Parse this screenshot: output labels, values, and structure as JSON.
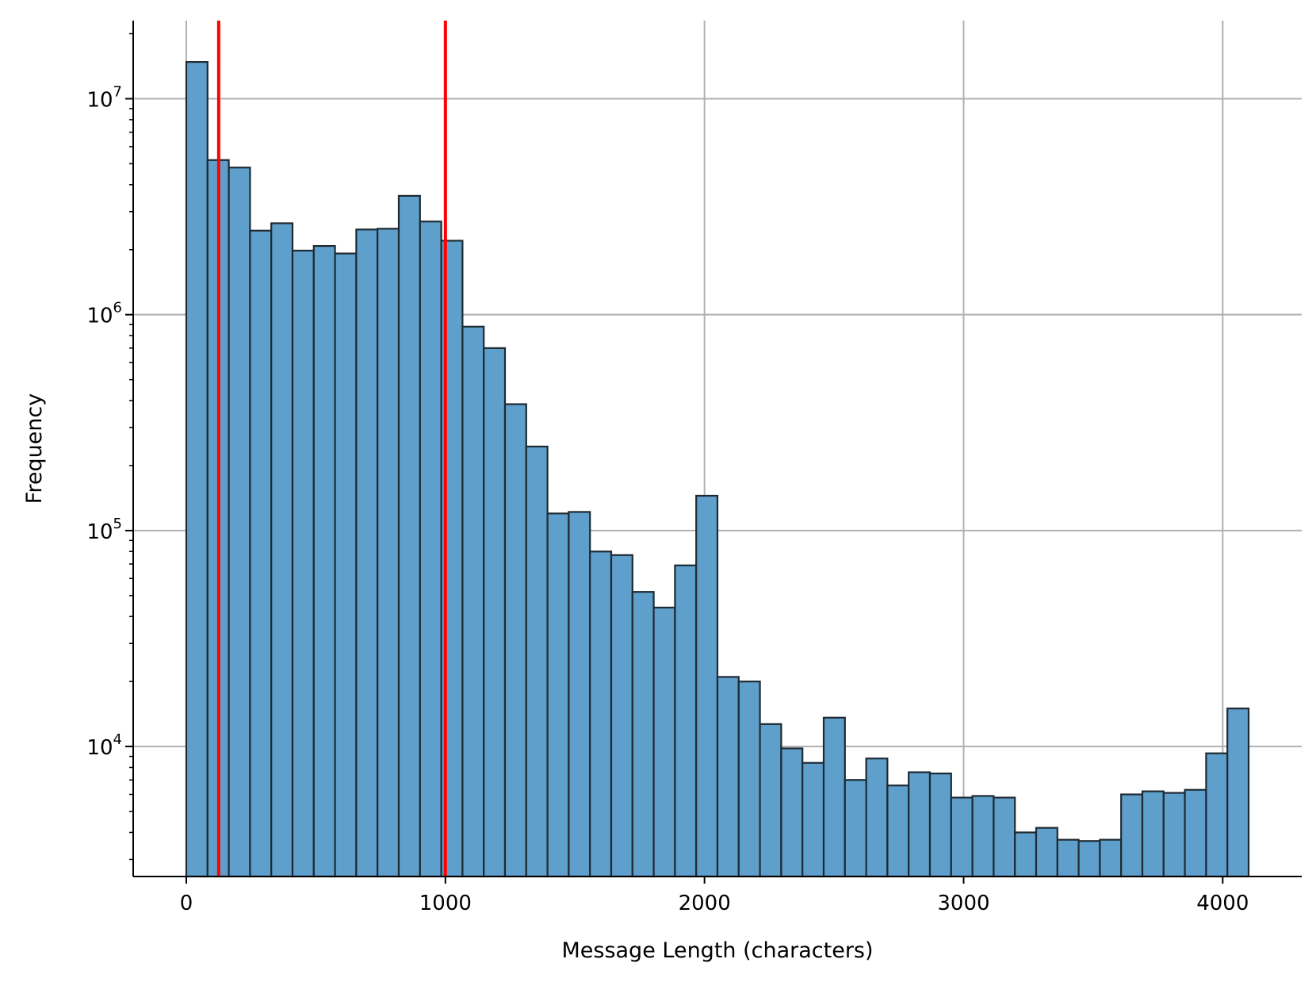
{
  "chart_data": {
    "type": "bar",
    "subtype": "histogram",
    "xlabel": "Message Length (characters)",
    "ylabel": "Frequency",
    "x_scale": "linear",
    "y_scale": "log",
    "xlim": [
      -205,
      4305
    ],
    "ylim": [
      2500,
      23000000
    ],
    "x_ticks": [
      0,
      1000,
      2000,
      3000,
      4000
    ],
    "x_tick_labels": [
      "0",
      "1000",
      "2000",
      "3000",
      "4000"
    ],
    "y_ticks": [
      10000,
      100000,
      1000000,
      10000000
    ],
    "y_tick_labels": [
      {
        "base": "10",
        "exp": "4"
      },
      {
        "base": "10",
        "exp": "5"
      },
      {
        "base": "10",
        "exp": "6"
      },
      {
        "base": "10",
        "exp": "7"
      }
    ],
    "grid": true,
    "bin_width": 82,
    "bin_start": 0,
    "values": [
      14800000,
      5200000,
      4800000,
      2450000,
      2650000,
      1980000,
      2080000,
      1920000,
      2480000,
      2500000,
      3550000,
      2700000,
      2200000,
      880000,
      700000,
      385000,
      245000,
      120000,
      122000,
      80000,
      77000,
      52000,
      44000,
      69000,
      145000,
      21000,
      20000,
      12700,
      9800,
      8400,
      13600,
      7000,
      8800,
      6600,
      7600,
      7500,
      5800,
      5900,
      5800,
      4000,
      4200,
      3700,
      3650,
      3700,
      6000,
      6200,
      6100,
      6300,
      9300,
      15000
    ],
    "vertical_lines": [
      {
        "x": 125,
        "color": "#ff0000"
      },
      {
        "x": 1000,
        "color": "#ff0000"
      }
    ],
    "colors": {
      "bar_fill": "#5f9fcb",
      "bar_edge": "#1e2a33",
      "grid": "#b0b0b0",
      "axis": "#000000"
    }
  }
}
